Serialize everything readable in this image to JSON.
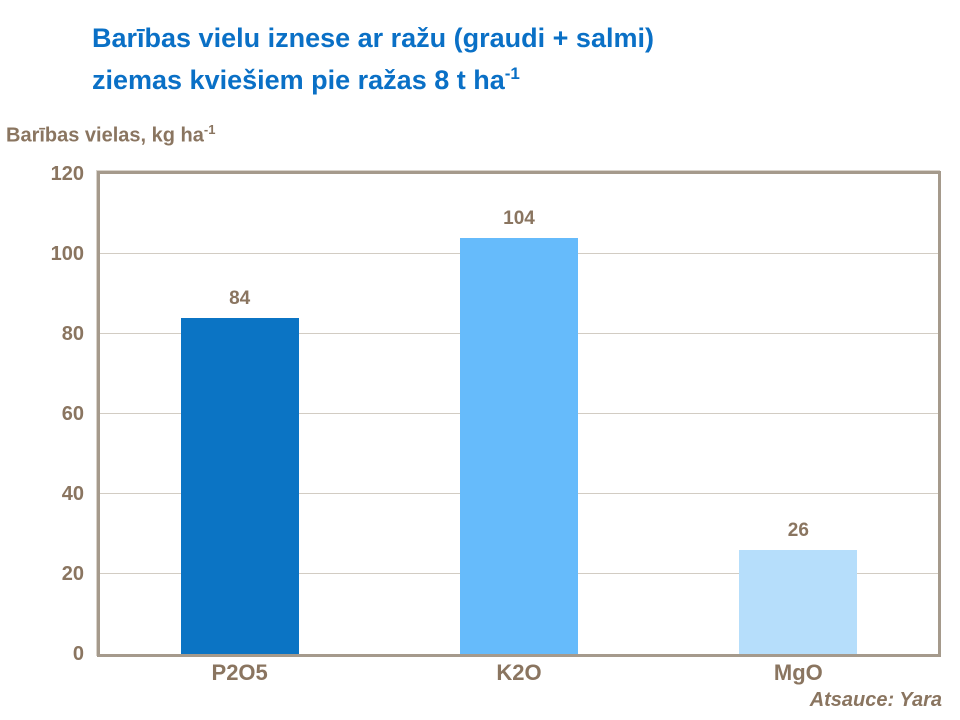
{
  "title": {
    "line1": "Barības vielu iznese ar ražu (graudi + salmi)",
    "line2": "ziemas kviešiem pie ražas 8 t ha",
    "line2_superscript": "-1",
    "color": "#0a70c6"
  },
  "y_axis": {
    "label": "Barības vielas, kg ha",
    "label_superscript": "-1"
  },
  "footer": {
    "text": "Atsauce: Yara"
  },
  "chart_data": {
    "type": "bar",
    "title": "Barības vielu iznese ar ražu (graudi + salmi) ziemas kviešiem pie ražas 8 t ha-1",
    "ylabel": "Barības vielas, kg ha-1",
    "xlabel": "",
    "categories": [
      "P2O5",
      "K2O",
      "MgO"
    ],
    "values": [
      84,
      104,
      26
    ],
    "bar_colors": [
      "#0b74c4",
      "#66bbfb",
      "#b6defb"
    ],
    "ylim": [
      0,
      120
    ],
    "yticks": [
      0,
      20,
      40,
      60,
      80,
      100,
      120
    ],
    "grid": true,
    "gridline_color": "#d2ccc3",
    "text_color": "#8a7560",
    "legend_position": "none",
    "data_labels_shown": true,
    "source": "Atsauce: Yara"
  }
}
